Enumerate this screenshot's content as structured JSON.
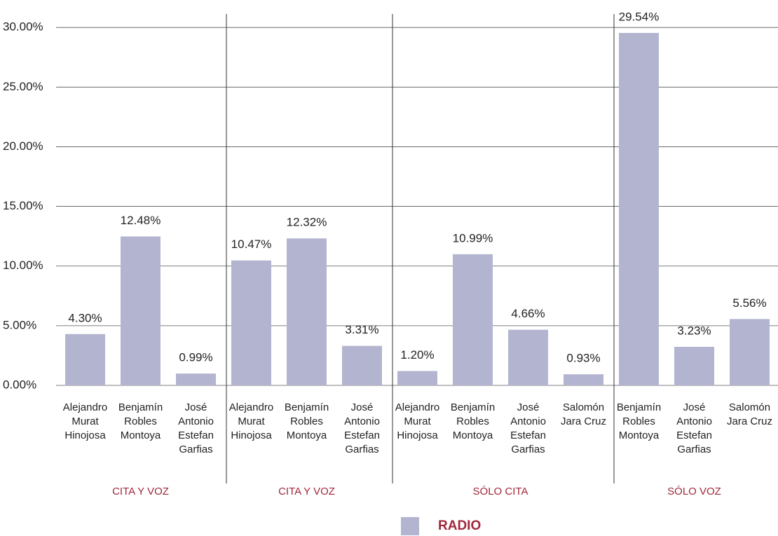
{
  "chart_data": {
    "type": "bar",
    "series": [
      {
        "name": "RADIO",
        "color": "#b3b5d0"
      }
    ],
    "ylim": [
      0,
      32.3
    ],
    "yticks": [
      {
        "value": 0,
        "label": "0.00%"
      },
      {
        "value": 5,
        "label": "5.00%"
      },
      {
        "value": 10,
        "label": "10.00%"
      },
      {
        "value": 15,
        "label": "15.00%"
      },
      {
        "value": 20,
        "label": "20.00%"
      },
      {
        "value": 25,
        "label": "25.00%"
      },
      {
        "value": 30,
        "label": "30.00%"
      }
    ],
    "grid": true,
    "groups": [
      {
        "label": "CITA Y VOZ",
        "categories": [
          "Alejandro Murat Hinojosa",
          "Benjamín Robles Montoya",
          "José Antonio Estefan Garfias"
        ],
        "values": [
          4.3,
          12.48,
          0.99
        ],
        "value_labels": [
          "4.30%",
          "12.48%",
          "0.99%"
        ]
      },
      {
        "label": "CITA Y VOZ",
        "categories": [
          "Alejandro Murat Hinojosa",
          "Benjamín Robles Montoya",
          "José Antonio Estefan Garfias"
        ],
        "values": [
          10.47,
          12.32,
          3.31
        ],
        "value_labels": [
          "10.47%",
          "12.32%",
          "3.31%"
        ]
      },
      {
        "label": "SÓLO CITA",
        "categories": [
          "Alejandro Murat Hinojosa",
          "Benjamín Robles Montoya",
          "José Antonio Estefan Garfias",
          "Salomón Jara Cruz"
        ],
        "values": [
          1.2,
          10.99,
          4.66,
          0.93
        ],
        "value_labels": [
          "1.20%",
          "10.99%",
          "4.66%",
          "0.93%"
        ]
      },
      {
        "label": "SÓLO VOZ",
        "categories": [
          "Benjamín Robles Montoya",
          "José Antonio Estefan Garfias",
          "Salomón Jara Cruz"
        ],
        "values": [
          29.54,
          3.23,
          5.56
        ],
        "value_labels": [
          "29.54%",
          "3.23%",
          "5.56%"
        ]
      }
    ]
  }
}
